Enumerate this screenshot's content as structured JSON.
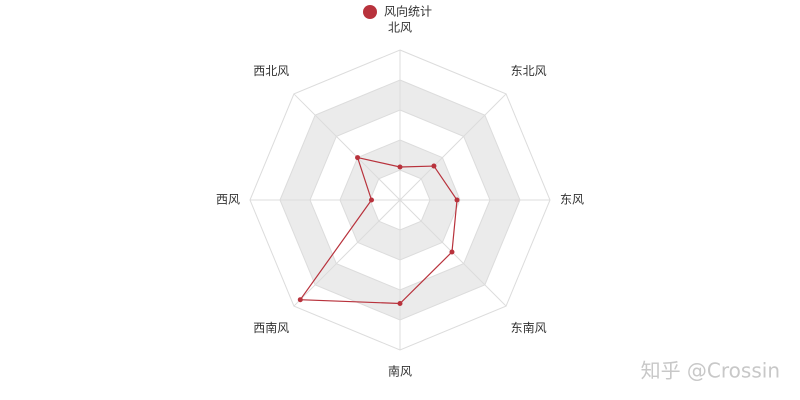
{
  "chart_data": {
    "type": "radar",
    "legend": "风向统计",
    "categories": [
      "北风",
      "东北风",
      "东风",
      "东南风",
      "南风",
      "西南风",
      "西风",
      "西北风"
    ],
    "series": [
      {
        "name": "风向统计",
        "color": "#b8323c",
        "values": [
          1.1,
          1.6,
          1.9,
          2.45,
          3.45,
          4.7,
          0.95,
          2.0
        ]
      }
    ],
    "rlim": [
      0,
      5
    ],
    "splits": 5
  },
  "watermark": "知乎 @Crossin"
}
